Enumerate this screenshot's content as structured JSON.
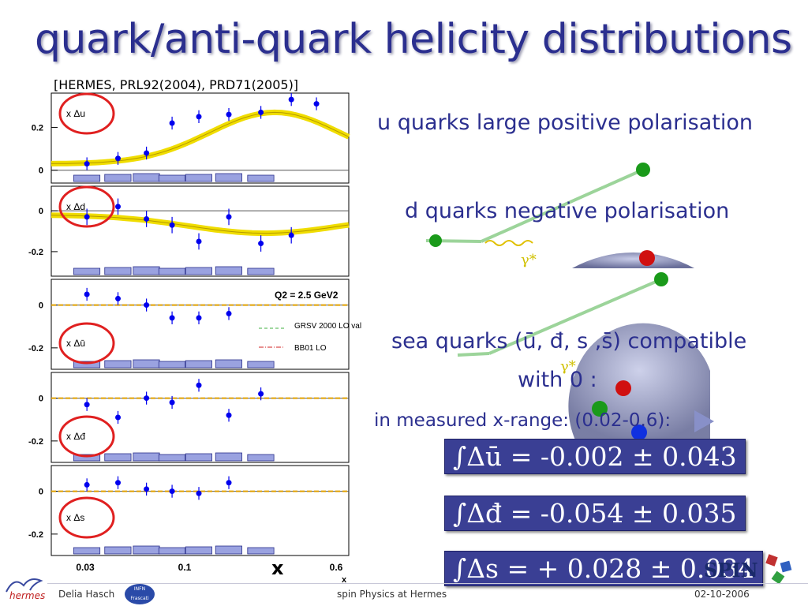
{
  "slide": {
    "title": "quark/anti-quark helicity distributions",
    "reference": "[HERMES, PRL92(2004), PRD71(2005)]",
    "bullets": {
      "u": "u quarks large positive polarisation",
      "d": "d quarks negative polarisation",
      "sea_line1": "sea quarks (ū, đ, s ,s̄) compatible",
      "sea_line2": "with 0 :",
      "range": "in measured x-range: (0.02-0.6):"
    },
    "formulas": [
      "∫Δū = -0.002 ± 0.043",
      "∫Δđ = -0.054 ± 0.035",
      "∫Δs = + 0.028 ± 0.034"
    ],
    "footer": {
      "author": "Delia Hasch",
      "center": "spin Physics at Hermes",
      "date": "02-10-2006",
      "logo_left": "hermes",
      "logo_infn": "INFN Frascati",
      "logo_spin": "SPIN"
    },
    "big_x_label": "x",
    "colors": {
      "title": "#2b2f8f",
      "formula_bg": "#3a3f94",
      "points": "#0000ee",
      "band": "#f0dd00"
    }
  },
  "chart_data": {
    "type": "scatter",
    "x_axis": {
      "label": "x",
      "scale": "log",
      "range": [
        0.022,
        0.65
      ],
      "ticks": [
        "0.03",
        "0.1",
        "0.6"
      ]
    },
    "legend": {
      "entries": [
        "GRSV 2000 LO val",
        "BB01 LO"
      ],
      "placement": "panel 3 right"
    },
    "annotation": "Q2 = 2.5 GeV2",
    "x_bins": [
      0.033,
      0.047,
      0.065,
      0.087,
      0.118,
      0.166,
      0.239,
      0.338
    ],
    "panels": [
      {
        "name": "x Δu",
        "ylim": [
          -0.06,
          0.36
        ],
        "yticks": [
          0,
          0.2
        ],
        "ytick_labels": [
          "0",
          "0.2"
        ],
        "values": [
          0.03,
          0.055,
          0.08,
          0.22,
          0.25,
          0.26,
          0.27,
          0.33,
          0.31
        ],
        "x": [
          0.033,
          0.047,
          0.065,
          0.087,
          0.118,
          0.166,
          0.239,
          0.338,
          0.45
        ],
        "errors": [
          0.03,
          0.03,
          0.03,
          0.03,
          0.03,
          0.03,
          0.03,
          0.03,
          0.03
        ]
      },
      {
        "name": "x Δd",
        "ylim": [
          -0.32,
          0.12
        ],
        "yticks": [
          0,
          -0.2
        ],
        "ytick_labels": [
          "0",
          "-0.2"
        ],
        "values": [
          -0.03,
          0.02,
          -0.04,
          -0.07,
          -0.15,
          -0.03,
          -0.16,
          -0.12
        ],
        "x": [
          0.033,
          0.047,
          0.065,
          0.087,
          0.118,
          0.166,
          0.239,
          0.338
        ],
        "errors": [
          0.04,
          0.04,
          0.04,
          0.04,
          0.04,
          0.04,
          0.04,
          0.04
        ]
      },
      {
        "name": "x Δū",
        "ylim": [
          -0.3,
          0.12
        ],
        "yticks": [
          0,
          -0.2
        ],
        "ytick_labels": [
          "0",
          "-0.2"
        ],
        "values": [
          0.05,
          0.03,
          0.0,
          -0.06,
          -0.06,
          -0.04
        ],
        "x": [
          0.033,
          0.047,
          0.065,
          0.087,
          0.118,
          0.166
        ],
        "errors": [
          0.03,
          0.03,
          0.03,
          0.03,
          0.03,
          0.03
        ]
      },
      {
        "name": "x Δđ",
        "ylim": [
          -0.3,
          0.12
        ],
        "yticks": [
          0,
          -0.2
        ],
        "ytick_labels": [
          "0",
          "-0.2"
        ],
        "values": [
          -0.03,
          -0.09,
          0.0,
          -0.02,
          0.06,
          -0.08,
          0.02
        ],
        "x": [
          0.033,
          0.047,
          0.065,
          0.087,
          0.118,
          0.166,
          0.239
        ],
        "errors": [
          0.03,
          0.03,
          0.03,
          0.03,
          0.03,
          0.03,
          0.03
        ]
      },
      {
        "name": "x Δs",
        "ylim": [
          -0.3,
          0.12
        ],
        "yticks": [
          0,
          -0.2
        ],
        "ytick_labels": [
          "0",
          "-0.2"
        ],
        "values": [
          0.03,
          0.04,
          0.01,
          0.0,
          -0.01,
          0.04
        ],
        "x": [
          0.033,
          0.047,
          0.065,
          0.087,
          0.118,
          0.166
        ],
        "errors": [
          0.03,
          0.03,
          0.03,
          0.03,
          0.03,
          0.03
        ]
      }
    ]
  }
}
